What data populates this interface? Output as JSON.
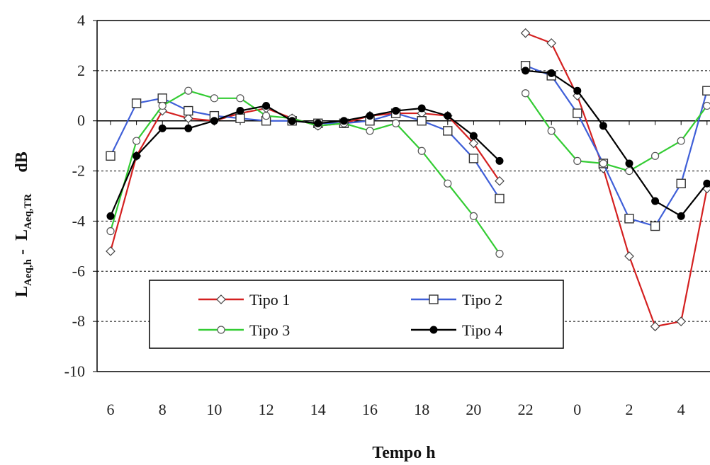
{
  "chart_data": {
    "type": "line",
    "xlabel": "Tempo  h",
    "ylabel_parts": {
      "main_1": "L",
      "sub_1": "Aeq,h",
      "dash": " - ",
      "main_2": "L",
      "sub_2": "Aeq,TR",
      "unit": "dB"
    },
    "ylim": [
      -10,
      4
    ],
    "yticks": [
      -10,
      -8,
      -6,
      -4,
      -2,
      0,
      2,
      4
    ],
    "grid": "dashed horizontal",
    "legend_position": "bottom-left",
    "x_tick_labels": [
      "6",
      "8",
      "10",
      "12",
      "14",
      "16",
      "18",
      "20",
      "22",
      "0",
      "2",
      "4"
    ],
    "segments": {
      "day": [
        "6",
        "7",
        "8",
        "9",
        "10",
        "11",
        "12",
        "13",
        "14",
        "15",
        "16",
        "17",
        "18",
        "19",
        "20",
        "21"
      ],
      "night": [
        "22",
        "23",
        "0",
        "1",
        "2",
        "3",
        "4",
        "5"
      ]
    },
    "series": [
      {
        "name": "Tipo 1",
        "color": "#d42020",
        "marker": "diamond-open",
        "day": [
          -5.2,
          -1.4,
          0.4,
          0.1,
          0.0,
          0.3,
          0.5,
          0.1,
          -0.2,
          -0.1,
          0.2,
          0.3,
          0.3,
          0.2,
          -0.9,
          -2.4
        ],
        "night": [
          3.5,
          3.1,
          1.0,
          -1.9,
          -5.4,
          -8.2,
          -8.0,
          -2.7
        ]
      },
      {
        "name": "Tipo 2",
        "color": "#3f5fd8",
        "marker": "square-open",
        "day": [
          -1.4,
          0.7,
          0.9,
          0.4,
          0.2,
          0.1,
          0.0,
          0.0,
          -0.1,
          -0.1,
          0.0,
          0.3,
          0.0,
          -0.4,
          -1.5,
          -3.1
        ],
        "night": [
          2.2,
          1.8,
          0.3,
          -1.7,
          -3.9,
          -4.2,
          -2.5,
          1.2
        ]
      },
      {
        "name": "Tipo 3",
        "color": "#33cc33",
        "marker": "circle-open",
        "day": [
          -4.4,
          -0.8,
          0.6,
          1.2,
          0.9,
          0.9,
          0.2,
          0.1,
          -0.2,
          -0.1,
          -0.4,
          -0.1,
          -1.2,
          -2.5,
          -3.8,
          -5.3
        ],
        "night": [
          1.1,
          -0.4,
          -1.6,
          -1.7,
          -2.0,
          -1.4,
          -0.8,
          0.6
        ]
      },
      {
        "name": "Tipo 4",
        "color": "#000000",
        "marker": "circle-filled",
        "day": [
          -3.8,
          -1.4,
          -0.3,
          -0.3,
          0.0,
          0.4,
          0.6,
          0.0,
          -0.1,
          0.0,
          0.2,
          0.4,
          0.5,
          0.2,
          -0.6,
          -1.6
        ],
        "night": [
          2.0,
          1.9,
          1.2,
          -0.2,
          -1.7,
          -3.2,
          -3.8,
          -2.5
        ]
      }
    ]
  }
}
